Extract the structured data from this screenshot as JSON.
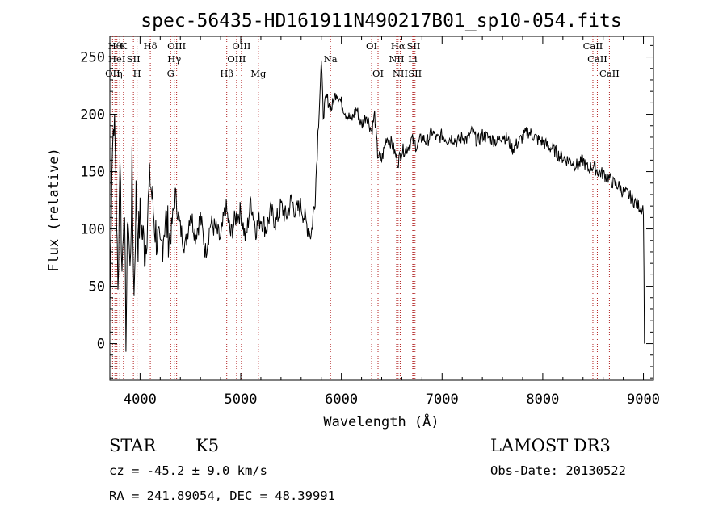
{
  "chart_data": {
    "type": "line",
    "title": "spec-56435-HD161911N490217B01_sp10-054.fits",
    "xlabel": "Wavelength (Å)",
    "ylabel": "Flux (relative)",
    "xlim": [
      3700,
      9100
    ],
    "ylim": [
      -32,
      268
    ],
    "x_ticks": [
      4000,
      5000,
      6000,
      7000,
      8000,
      9000
    ],
    "y_ticks": [
      0,
      50,
      100,
      150,
      200,
      250
    ],
    "grid": false,
    "line_color": "#000000",
    "marker_color": "#b22222",
    "series": [
      {
        "x": [
          3700,
          3720,
          3740,
          3760,
          3780,
          3800,
          3820,
          3840,
          3860,
          3880,
          3900,
          3920,
          3940,
          3960,
          3980,
          4000,
          4050,
          4100,
          4150,
          4200,
          4250,
          4300,
          4350,
          4400,
          4450,
          4500,
          4550,
          4600,
          4650,
          4700,
          4750,
          4800,
          4850,
          4900,
          4950,
          5000,
          5050,
          5100,
          5150,
          5200,
          5250,
          5300,
          5350,
          5400,
          5450,
          5500,
          5550,
          5600,
          5650,
          5700,
          5740,
          5760,
          5780,
          5800,
          5820,
          5850,
          5900,
          5950,
          6000,
          6050,
          6100,
          6150,
          6200,
          6250,
          6300,
          6330,
          6360,
          6400,
          6450,
          6500,
          6560,
          6600,
          6650,
          6700,
          6750,
          6800,
          6850,
          6900,
          6950,
          7000,
          7050,
          7100,
          7150,
          7200,
          7250,
          7300,
          7350,
          7400,
          7450,
          7500,
          7550,
          7600,
          7650,
          7700,
          7750,
          7800,
          7850,
          7900,
          7950,
          8000,
          8050,
          8100,
          8150,
          8200,
          8250,
          8300,
          8350,
          8400,
          8450,
          8500,
          8550,
          8600,
          8650,
          8700,
          8750,
          8800,
          8850,
          8900,
          8950,
          9000,
          9010
        ],
        "y": [
          30,
          160,
          200,
          150,
          40,
          170,
          60,
          130,
          10,
          120,
          60,
          150,
          40,
          130,
          90,
          110,
          80,
          145,
          100,
          75,
          110,
          90,
          130,
          100,
          85,
          115,
          95,
          110,
          80,
          105,
          100,
          90,
          120,
          95,
          110,
          115,
          90,
          125,
          100,
          110,
          100,
          115,
          105,
          120,
          110,
          125,
          115,
          120,
          105,
          95,
          130,
          170,
          210,
          245,
          200,
          215,
          205,
          220,
          210,
          200,
          195,
          205,
          190,
          200,
          185,
          200,
          165,
          160,
          180,
          175,
          158,
          168,
          170,
          178,
          172,
          180,
          176,
          185,
          178,
          182,
          178,
          180,
          176,
          180,
          178,
          185,
          176,
          182,
          180,
          178,
          176,
          182,
          178,
          170,
          175,
          180,
          185,
          182,
          178,
          176,
          172,
          170,
          165,
          162,
          160,
          158,
          155,
          160,
          152,
          155,
          150,
          148,
          145,
          140,
          138,
          132,
          130,
          125,
          120,
          118,
          0
        ]
      }
    ],
    "lines": {
      "top": [
        {
          "x": 3750,
          "label": "Hθ",
          "row": 1
        },
        {
          "x": 3835,
          "label": "K",
          "row": 1
        },
        {
          "x": 4102,
          "label": "Hδ",
          "row": 1
        },
        {
          "x": 4363,
          "label": "OIII",
          "row": 1
        },
        {
          "x": 5007,
          "label": "OIII",
          "row": 1
        },
        {
          "x": 6300,
          "label": "OI",
          "row": 1
        },
        {
          "x": 6563,
          "label": "Hα",
          "row": 1
        },
        {
          "x": 6717,
          "label": "SII",
          "row": 1
        },
        {
          "x": 8498,
          "label": "CaII",
          "row": 1
        },
        {
          "x": 3770,
          "label": "HeI",
          "row": 2
        },
        {
          "x": 3934,
          "label": "SII",
          "row": 2
        },
        {
          "x": 4340,
          "label": "Hγ",
          "row": 2
        },
        {
          "x": 4959,
          "label": "OIII",
          "row": 2
        },
        {
          "x": 5892,
          "label": "Na",
          "row": 2
        },
        {
          "x": 6548,
          "label": "NII",
          "row": 2
        },
        {
          "x": 6708,
          "label": "Li",
          "row": 2
        },
        {
          "x": 8542,
          "label": "CaII",
          "row": 2
        },
        {
          "x": 3727,
          "label": "OII",
          "row": 3
        },
        {
          "x": 3798,
          "label": "η",
          "row": 3
        },
        {
          "x": 3970,
          "label": "H",
          "row": 3
        },
        {
          "x": 4304,
          "label": "G",
          "row": 3
        },
        {
          "x": 4861,
          "label": "Hβ",
          "row": 3
        },
        {
          "x": 5175,
          "label": "Mg",
          "row": 3
        },
        {
          "x": 6364,
          "label": "OI",
          "row": 3
        },
        {
          "x": 6584,
          "label": "NII",
          "row": 3
        },
        {
          "x": 6731,
          "label": "SII",
          "row": 3
        },
        {
          "x": 8662,
          "label": "CaII",
          "row": 3
        }
      ]
    }
  },
  "info": {
    "object_class": "STAR",
    "subclass": "K5",
    "survey": "LAMOST DR3",
    "cz_line": "cz = -45.2 ± 9.0 km/s",
    "obs_date_line": "Obs-Date: 20130522",
    "coords_line": "RA = 241.89054, DEC =  48.39991"
  }
}
